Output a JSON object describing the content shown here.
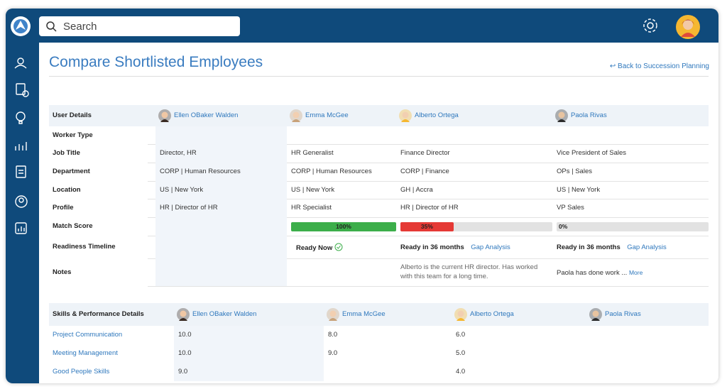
{
  "search_placeholder": "Search",
  "page_title": "Compare Shortlisted Employees",
  "back_link": "Back to Succession Planning",
  "compare": {
    "header": "User Details",
    "employees": [
      "Ellen OBaker Walden",
      "Emma McGee",
      "Alberto Ortega",
      "Paola Rivas"
    ],
    "rows": [
      {
        "label": "Worker Type",
        "cells": [
          null,
          null,
          null,
          null
        ]
      },
      {
        "label": "Job Title",
        "cells": [
          "Director, HR",
          "HR Generalist",
          "Finance Director",
          "Vice President of Sales"
        ]
      },
      {
        "label": "Department",
        "cells": [
          "CORP | Human Resources",
          "CORP | Human Resources",
          "CORP | Finance",
          "OPs | Sales"
        ]
      },
      {
        "label": "Location",
        "cells": [
          "US | New York",
          "US | New York",
          "GH | Accra",
          "US | New York"
        ]
      },
      {
        "label": "Profile",
        "cells": [
          "HR | Director of HR",
          "HR Specialist",
          "HR | Director of HR",
          "VP Sales"
        ]
      },
      {
        "label": "Match Score",
        "cells": [
          null,
          {
            "value": 100,
            "label": "100%",
            "color": "#3cae4a"
          },
          {
            "value": 35,
            "label": "35%",
            "color": "#e53935"
          },
          {
            "value": 0,
            "label": "0%",
            "color": "#9e9e9e"
          }
        ]
      },
      {
        "label": "Readiness Timeline",
        "cells": [
          null,
          {
            "status": "Ready Now"
          },
          {
            "status": "Ready in 36 months",
            "link": "Gap Analysis"
          },
          {
            "status": "Ready in 36 months",
            "link": "Gap Analysis"
          }
        ]
      },
      {
        "label": "Notes",
        "cells": [
          null,
          null,
          {
            "text": "Alberto is the current HR director. Has worked with this team for a long time."
          },
          {
            "text": "Paola has done work ...",
            "link": "More"
          }
        ]
      }
    ]
  },
  "skills": {
    "header": "Skills & Performance Details",
    "employees": [
      "Ellen OBaker Walden",
      "Emma McGee",
      "Alberto Ortega",
      "Paola Rivas"
    ],
    "rows": [
      {
        "label": "Project Communication",
        "cells": [
          "10.0",
          "8.0",
          "6.0",
          null
        ]
      },
      {
        "label": "Meeting Management",
        "cells": [
          "10.0",
          "9.0",
          "5.0",
          null
        ]
      },
      {
        "label": "Good People Skills",
        "cells": [
          "9.0",
          null,
          "4.0",
          null
        ]
      }
    ]
  }
}
